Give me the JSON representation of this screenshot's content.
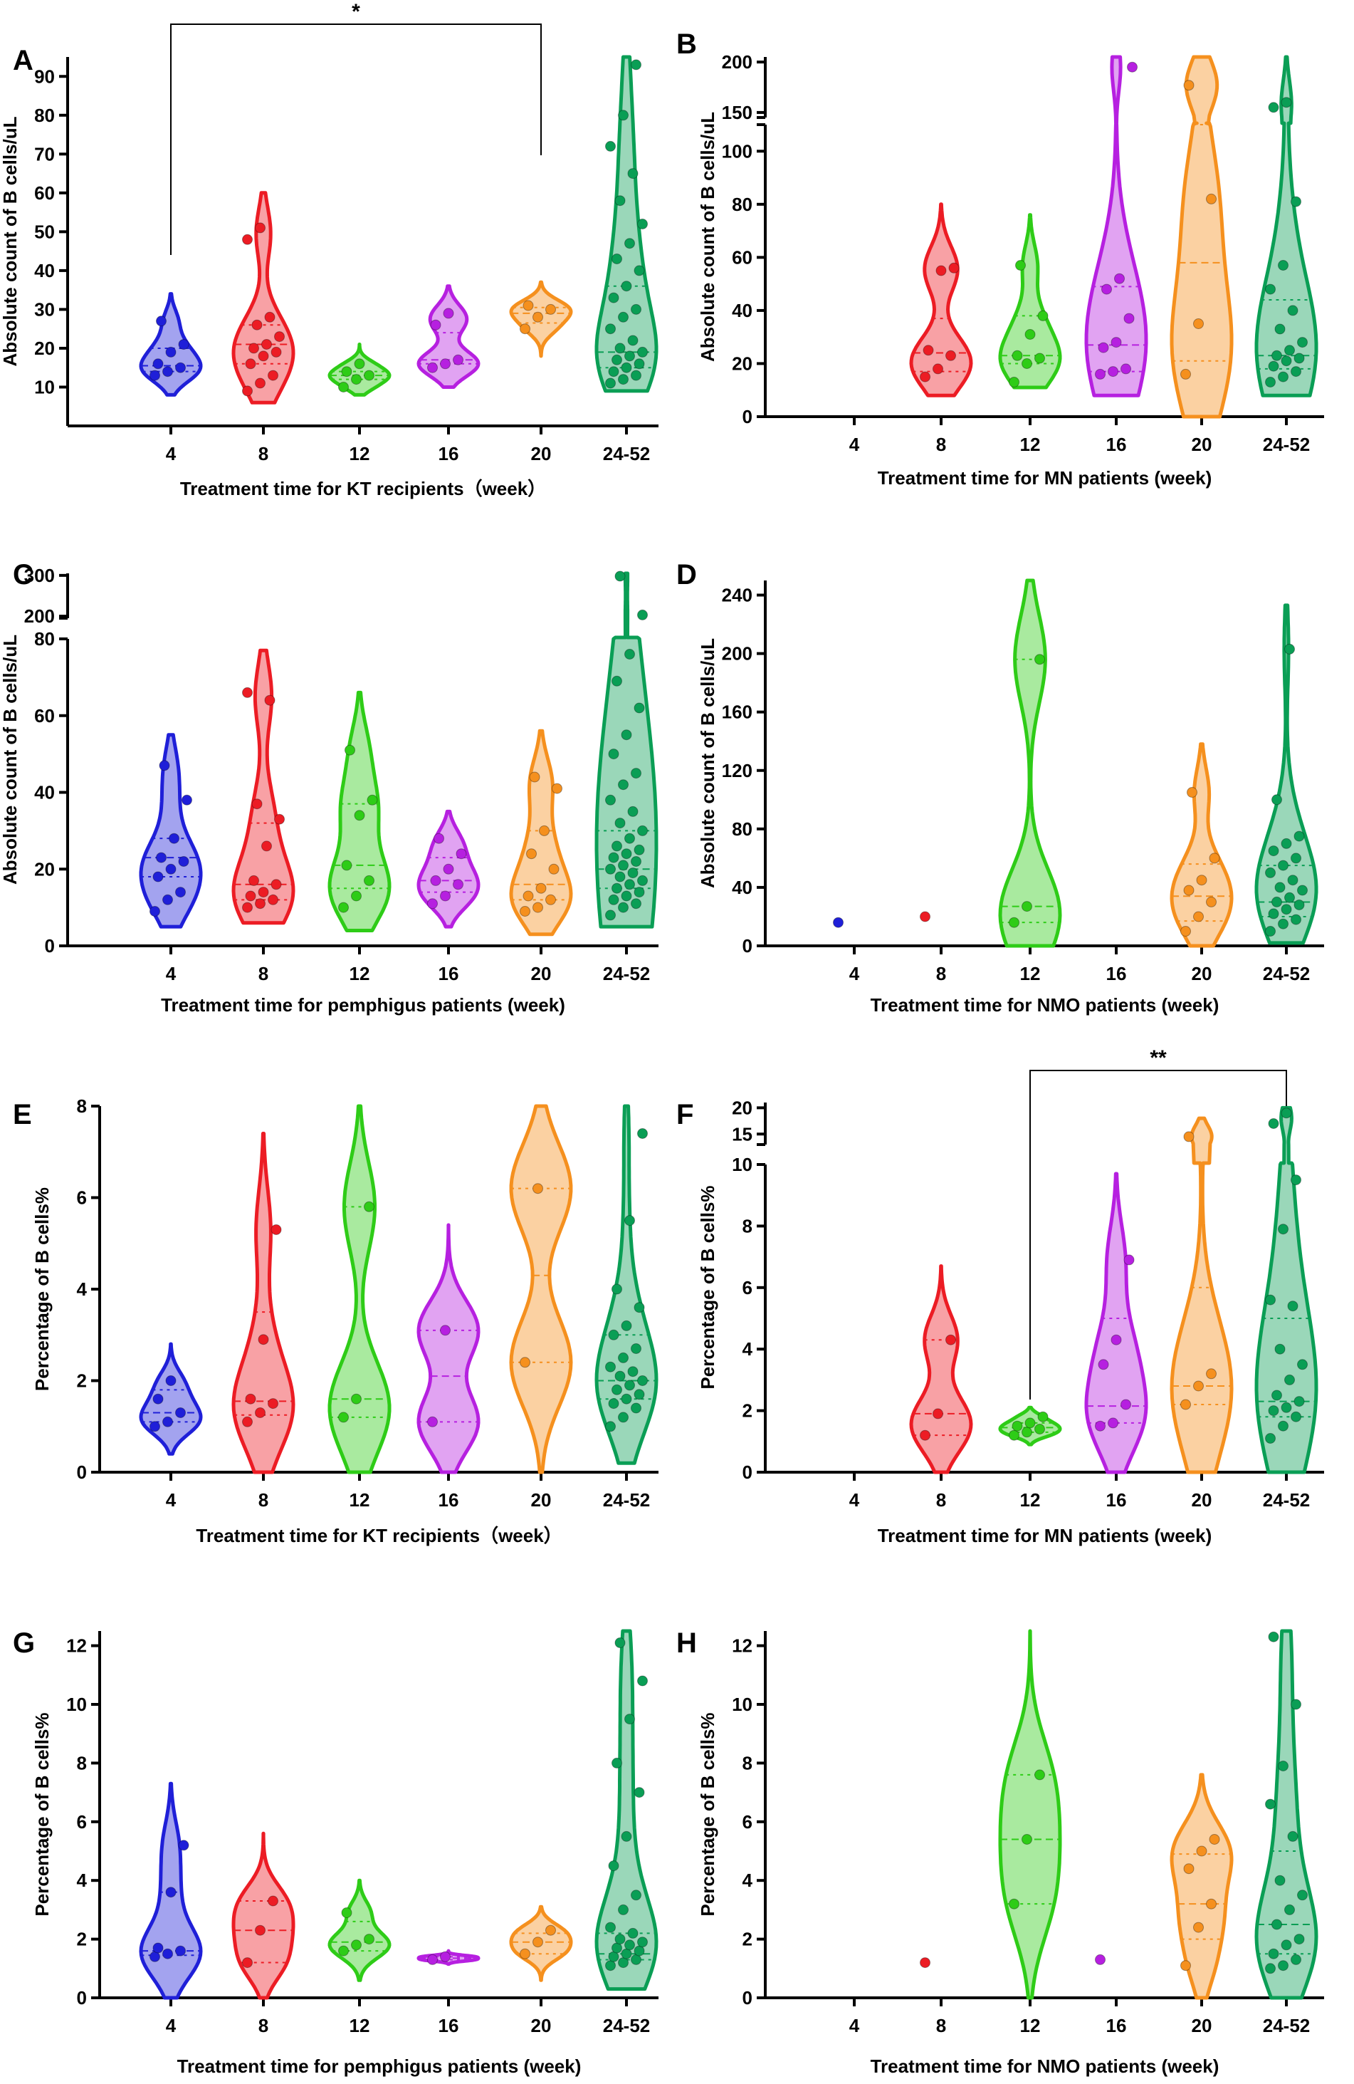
{
  "figure": {
    "background": "#ffffff"
  },
  "palette": {
    "4": "#1f1fd8",
    "8": "#ec1c24",
    "12": "#2ecc17",
    "16": "#b620e0",
    "20": "#f5901e",
    "24-52": "#0a9e55"
  },
  "categories": [
    "4",
    "8",
    "12",
    "16",
    "20",
    "24-52"
  ],
  "chart_data": [
    {
      "type": "violin",
      "panel": "A",
      "xlabel": "Treatment time for KT recipients（week）",
      "ylabel": "Absolute count of B cells/uL",
      "ylim": [
        0,
        95
      ],
      "yticks": [
        10,
        20,
        30,
        40,
        50,
        60,
        70,
        80,
        90
      ],
      "y_zero_label": false,
      "significance": [
        {
          "from": "4",
          "to": "20",
          "label": "*"
        }
      ],
      "series": [
        {
          "name": "4",
          "values": [
            13,
            14,
            15,
            16,
            19,
            21,
            27
          ],
          "median": 15.5,
          "q1": 14,
          "q3": 20,
          "vmin": 8,
          "vmax": 34
        },
        {
          "name": "8",
          "values": [
            9,
            11,
            13,
            16,
            18,
            19,
            20,
            21,
            23,
            26,
            28,
            48,
            51
          ],
          "median": 21,
          "q1": 16,
          "q3": 26,
          "vmin": 6,
          "vmax": 60
        },
        {
          "name": "12",
          "values": [
            10,
            12,
            13,
            14,
            16
          ],
          "median": 13,
          "q1": 12,
          "q3": 14,
          "vmin": 8,
          "vmax": 21
        },
        {
          "name": "16",
          "values": [
            15,
            16,
            17,
            26,
            29
          ],
          "median": 17,
          "q1": 16,
          "q3": 24,
          "vmin": 10,
          "vmax": 36
        },
        {
          "name": "20",
          "values": [
            25,
            28,
            30,
            31
          ],
          "median": 29,
          "q1": 26.5,
          "q3": 30.5,
          "vmin": 18,
          "vmax": 37
        },
        {
          "name": "24-52",
          "values": [
            11,
            12,
            13,
            14,
            15,
            16,
            17,
            18,
            19,
            20,
            22,
            25,
            28,
            30,
            33,
            36,
            40,
            43,
            47,
            52,
            58,
            65,
            72,
            80,
            93
          ],
          "median": 19,
          "q1": 15,
          "q3": 36,
          "vmin": 9,
          "vmax": 95
        }
      ]
    },
    {
      "type": "violin",
      "panel": "B",
      "xlabel": "Treatment time for MN patients (week)",
      "ylabel": "Absolute count of B cells/uL",
      "ylim": [
        0,
        205
      ],
      "yticks": [
        0,
        20,
        40,
        60,
        80,
        100
      ],
      "y_break": {
        "lower_max": 110,
        "upper_ticks": [
          150,
          200
        ],
        "upper_range": [
          145,
          205
        ]
      },
      "series": [
        {
          "name": "4",
          "values": [],
          "median": null,
          "q1": null,
          "q3": null,
          "vmin": null,
          "vmax": null
        },
        {
          "name": "8",
          "values": [
            15,
            18,
            23,
            25,
            55,
            56
          ],
          "median": 24,
          "q1": 17,
          "q3": 37,
          "vmin": 8,
          "vmax": 80
        },
        {
          "name": "12",
          "values": [
            13,
            20,
            22,
            23,
            31,
            38,
            57
          ],
          "median": 23,
          "q1": 20,
          "q3": 38,
          "vmin": 11,
          "vmax": 76
        },
        {
          "name": "16",
          "values": [
            16,
            17,
            18,
            26,
            28,
            37,
            48,
            52,
            195
          ],
          "median": 27,
          "q1": 17,
          "q3": 49,
          "vmin": 8,
          "vmax": 205
        },
        {
          "name": "20",
          "values": [
            16,
            35,
            82,
            177
          ],
          "median": 58,
          "q1": 21,
          "q3": 110,
          "vmin": 0,
          "vmax": 205
        },
        {
          "name": "24-52",
          "values": [
            13,
            15,
            17,
            19,
            21,
            22,
            23,
            25,
            28,
            33,
            40,
            48,
            57,
            81,
            155,
            160
          ],
          "median": 23,
          "q1": 18,
          "q3": 44,
          "vmin": 8,
          "vmax": 205
        }
      ]
    },
    {
      "type": "violin",
      "panel": "C",
      "xlabel": "Treatment time for pemphigus patients (week)",
      "ylabel": "Absolute count of B cells/uL",
      "ylim": [
        0,
        300
      ],
      "yticks": [
        0,
        20,
        40,
        60,
        80
      ],
      "y_break": {
        "lower_max": 80,
        "upper_ticks": [
          200,
          300
        ],
        "upper_range": [
          195,
          305
        ]
      },
      "series": [
        {
          "name": "4",
          "values": [
            9,
            12,
            14,
            18,
            20,
            22,
            23,
            28,
            38,
            47
          ],
          "median": 23,
          "q1": 18,
          "q3": 28,
          "vmin": 5,
          "vmax": 55
        },
        {
          "name": "8",
          "values": [
            10,
            11,
            12,
            13,
            14,
            16,
            17,
            26,
            33,
            37,
            64,
            66
          ],
          "median": 16,
          "q1": 12,
          "q3": 32,
          "vmin": 6,
          "vmax": 77
        },
        {
          "name": "12",
          "values": [
            10,
            13,
            17,
            21,
            34,
            38,
            51
          ],
          "median": 21,
          "q1": 15,
          "q3": 37,
          "vmin": 4,
          "vmax": 66
        },
        {
          "name": "16",
          "values": [
            11,
            13,
            16,
            17,
            20,
            24,
            28
          ],
          "median": 17,
          "q1": 14,
          "q3": 23,
          "vmin": 5,
          "vmax": 35
        },
        {
          "name": "20",
          "values": [
            9,
            10,
            12,
            13,
            15,
            20,
            24,
            30,
            41,
            44
          ],
          "median": 16,
          "q1": 12,
          "q3": 30,
          "vmin": 3,
          "vmax": 56
        },
        {
          "name": "24-52",
          "values": [
            8,
            10,
            11,
            12,
            13,
            14,
            15,
            16,
            17,
            18,
            19,
            20,
            21,
            22,
            23,
            24,
            25,
            26,
            28,
            30,
            32,
            35,
            38,
            42,
            45,
            50,
            55,
            62,
            69,
            76,
            203,
            298
          ],
          "median": 20,
          "q1": 15,
          "q3": 30,
          "vmin": 5,
          "vmax": 305
        }
      ]
    },
    {
      "type": "violin",
      "panel": "D",
      "xlabel": "Treatment time for NMO patients (week)",
      "ylabel": "Absolute count of B cells/uL",
      "ylim": [
        0,
        250
      ],
      "yticks": [
        0,
        40,
        80,
        120,
        160,
        200,
        240
      ],
      "series": [
        {
          "name": "4",
          "values": [
            16
          ],
          "median": null,
          "q1": null,
          "q3": null,
          "vmin": null,
          "vmax": null
        },
        {
          "name": "8",
          "values": [
            20
          ],
          "median": null,
          "q1": null,
          "q3": null,
          "vmin": null,
          "vmax": null
        },
        {
          "name": "12",
          "values": [
            16,
            27,
            196
          ],
          "median": 27,
          "q1": 16,
          "q3": 196,
          "vmin": 0,
          "vmax": 250
        },
        {
          "name": "16",
          "values": [],
          "median": null,
          "q1": null,
          "q3": null,
          "vmin": null,
          "vmax": null
        },
        {
          "name": "20",
          "values": [
            10,
            20,
            30,
            38,
            45,
            60,
            105
          ],
          "median": 34,
          "q1": 17,
          "q3": 56,
          "vmin": 0,
          "vmax": 138
        },
        {
          "name": "24-52",
          "values": [
            10,
            15,
            18,
            22,
            25,
            28,
            30,
            33,
            38,
            40,
            45,
            50,
            55,
            60,
            65,
            70,
            75,
            100,
            203
          ],
          "median": 30,
          "q1": 20,
          "q3": 55,
          "vmin": 2,
          "vmax": 233
        }
      ]
    },
    {
      "type": "violin",
      "panel": "E",
      "xlabel": "Treatment time for KT recipients（week）",
      "ylabel": "Percentage of B cells%",
      "ylim": [
        0,
        8
      ],
      "yticks": [
        0,
        2,
        4,
        6,
        8
      ],
      "series": [
        {
          "name": "4",
          "values": [
            1.0,
            1.1,
            1.3,
            1.6,
            2.0
          ],
          "median": 1.3,
          "q1": 1.1,
          "q3": 1.8,
          "vmin": 0.4,
          "vmax": 2.8
        },
        {
          "name": "8",
          "values": [
            1.1,
            1.3,
            1.5,
            1.6,
            2.9,
            5.3
          ],
          "median": 1.55,
          "q1": 1.25,
          "q3": 3.5,
          "vmin": 0.0,
          "vmax": 7.4
        },
        {
          "name": "12",
          "values": [
            1.2,
            1.6,
            5.8
          ],
          "median": 1.6,
          "q1": 1.2,
          "q3": 5.8,
          "vmin": 0.0,
          "vmax": 8.0
        },
        {
          "name": "16",
          "values": [
            1.1,
            3.1
          ],
          "median": 2.1,
          "q1": 1.1,
          "q3": 3.1,
          "vmin": 0.0,
          "vmax": 5.4
        },
        {
          "name": "20",
          "values": [
            2.4,
            6.2
          ],
          "median": 4.3,
          "q1": 2.4,
          "q3": 6.2,
          "vmin": 0.0,
          "vmax": 8.0
        },
        {
          "name": "24-52",
          "values": [
            1.0,
            1.2,
            1.4,
            1.5,
            1.6,
            1.7,
            1.8,
            1.9,
            2.0,
            2.1,
            2.2,
            2.3,
            2.5,
            2.7,
            3.0,
            3.2,
            3.6,
            4.0,
            5.5,
            7.4
          ],
          "median": 2.0,
          "q1": 1.6,
          "q3": 3.0,
          "vmin": 0.2,
          "vmax": 8.0
        }
      ]
    },
    {
      "type": "violin",
      "panel": "F",
      "xlabel": "Treatment time for MN patients (week)",
      "ylabel": "Percentage of B cells%",
      "ylim": [
        0,
        20
      ],
      "yticks": [
        0,
        2,
        4,
        6,
        8,
        10
      ],
      "y_break": {
        "lower_max": 10,
        "upper_ticks": [
          15,
          20
        ],
        "upper_range": [
          13,
          21
        ]
      },
      "significance": [
        {
          "from": "12",
          "to": "24-52",
          "label": "**"
        }
      ],
      "series": [
        {
          "name": "4",
          "values": [],
          "median": null,
          "q1": null,
          "q3": null,
          "vmin": null,
          "vmax": null
        },
        {
          "name": "8",
          "values": [
            1.2,
            1.9,
            4.3
          ],
          "median": 1.9,
          "q1": 1.2,
          "q3": 4.3,
          "vmin": 0.0,
          "vmax": 6.7
        },
        {
          "name": "12",
          "values": [
            1.2,
            1.3,
            1.4,
            1.5,
            1.6,
            1.8
          ],
          "median": 1.45,
          "q1": 1.3,
          "q3": 1.6,
          "vmin": 0.9,
          "vmax": 2.1
        },
        {
          "name": "16",
          "values": [
            1.5,
            1.6,
            2.2,
            3.5,
            4.3,
            6.9
          ],
          "median": 2.15,
          "q1": 1.6,
          "q3": 5.0,
          "vmin": 0.0,
          "vmax": 9.7
        },
        {
          "name": "20",
          "values": [
            2.2,
            2.8,
            3.2,
            14.5
          ],
          "median": 2.8,
          "q1": 2.2,
          "q3": 6.0,
          "vmin": 0.0,
          "vmax": 18.0
        },
        {
          "name": "24-52",
          "values": [
            1.1,
            1.5,
            1.8,
            2.0,
            2.1,
            2.3,
            2.5,
            3.0,
            3.5,
            4.0,
            5.4,
            5.6,
            7.9,
            9.5,
            17.0,
            19.0
          ],
          "median": 2.3,
          "q1": 1.8,
          "q3": 5.0,
          "vmin": 0.0,
          "vmax": 20.0
        }
      ]
    },
    {
      "type": "violin",
      "panel": "G",
      "xlabel": "Treatment time for pemphigus patients (week)",
      "ylabel": "Percentage of B cells%",
      "ylim": [
        0,
        12.5
      ],
      "yticks": [
        0,
        2,
        4,
        6,
        8,
        10,
        12
      ],
      "series": [
        {
          "name": "4",
          "values": [
            1.4,
            1.5,
            1.6,
            1.7,
            3.6,
            5.2
          ],
          "median": 1.6,
          "q1": 1.45,
          "q3": 3.6,
          "vmin": 0.0,
          "vmax": 7.3
        },
        {
          "name": "8",
          "values": [
            1.2,
            2.3,
            3.3
          ],
          "median": 2.3,
          "q1": 1.2,
          "q3": 3.3,
          "vmin": 0.0,
          "vmax": 5.6
        },
        {
          "name": "12",
          "values": [
            1.6,
            1.8,
            2.0,
            2.9
          ],
          "median": 1.9,
          "q1": 1.6,
          "q3": 2.6,
          "vmin": 0.6,
          "vmax": 4.0
        },
        {
          "name": "16",
          "values": [
            1.3,
            1.4
          ],
          "median": 1.35,
          "q1": 1.3,
          "q3": 1.4,
          "vmin": 1.15,
          "vmax": 1.6
        },
        {
          "name": "20",
          "values": [
            1.5,
            1.9,
            2.3
          ],
          "median": 1.9,
          "q1": 1.5,
          "q3": 2.2,
          "vmin": 0.6,
          "vmax": 3.1
        },
        {
          "name": "24-52",
          "values": [
            1.1,
            1.2,
            1.3,
            1.4,
            1.5,
            1.6,
            1.7,
            1.8,
            1.9,
            2.0,
            2.2,
            2.4,
            3.0,
            3.5,
            4.5,
            5.5,
            7.0,
            8.0,
            9.5,
            10.8,
            12.1
          ],
          "median": 1.5,
          "q1": 1.3,
          "q3": 2.2,
          "vmin": 0.3,
          "vmax": 12.5
        }
      ]
    },
    {
      "type": "violin",
      "panel": "H",
      "xlabel": "Treatment time for NMO patients (week)",
      "ylabel": "Percentage of B cells%",
      "ylim": [
        0,
        12.5
      ],
      "yticks": [
        0,
        2,
        4,
        6,
        8,
        10,
        12
      ],
      "series": [
        {
          "name": "4",
          "values": [],
          "median": null,
          "q1": null,
          "q3": null,
          "vmin": null,
          "vmax": null
        },
        {
          "name": "8",
          "values": [
            1.2
          ],
          "median": null,
          "q1": null,
          "q3": null,
          "vmin": null,
          "vmax": null
        },
        {
          "name": "12",
          "values": [
            3.2,
            5.4,
            7.6
          ],
          "median": 5.4,
          "q1": 3.2,
          "q3": 7.6,
          "vmin": 0.0,
          "vmax": 12.5
        },
        {
          "name": "16",
          "values": [
            1.3
          ],
          "median": null,
          "q1": null,
          "q3": null,
          "vmin": null,
          "vmax": null
        },
        {
          "name": "20",
          "values": [
            1.1,
            2.4,
            3.2,
            4.4,
            5.0,
            5.4
          ],
          "median": 3.2,
          "q1": 2.0,
          "q3": 4.9,
          "vmin": 0.0,
          "vmax": 7.6
        },
        {
          "name": "24-52",
          "values": [
            1.0,
            1.1,
            1.3,
            1.5,
            1.8,
            2.0,
            2.5,
            3.0,
            3.5,
            4.0,
            5.5,
            6.6,
            7.9,
            10.0,
            12.3
          ],
          "median": 2.5,
          "q1": 1.5,
          "q3": 5.0,
          "vmin": 0.0,
          "vmax": 12.5
        }
      ]
    }
  ]
}
